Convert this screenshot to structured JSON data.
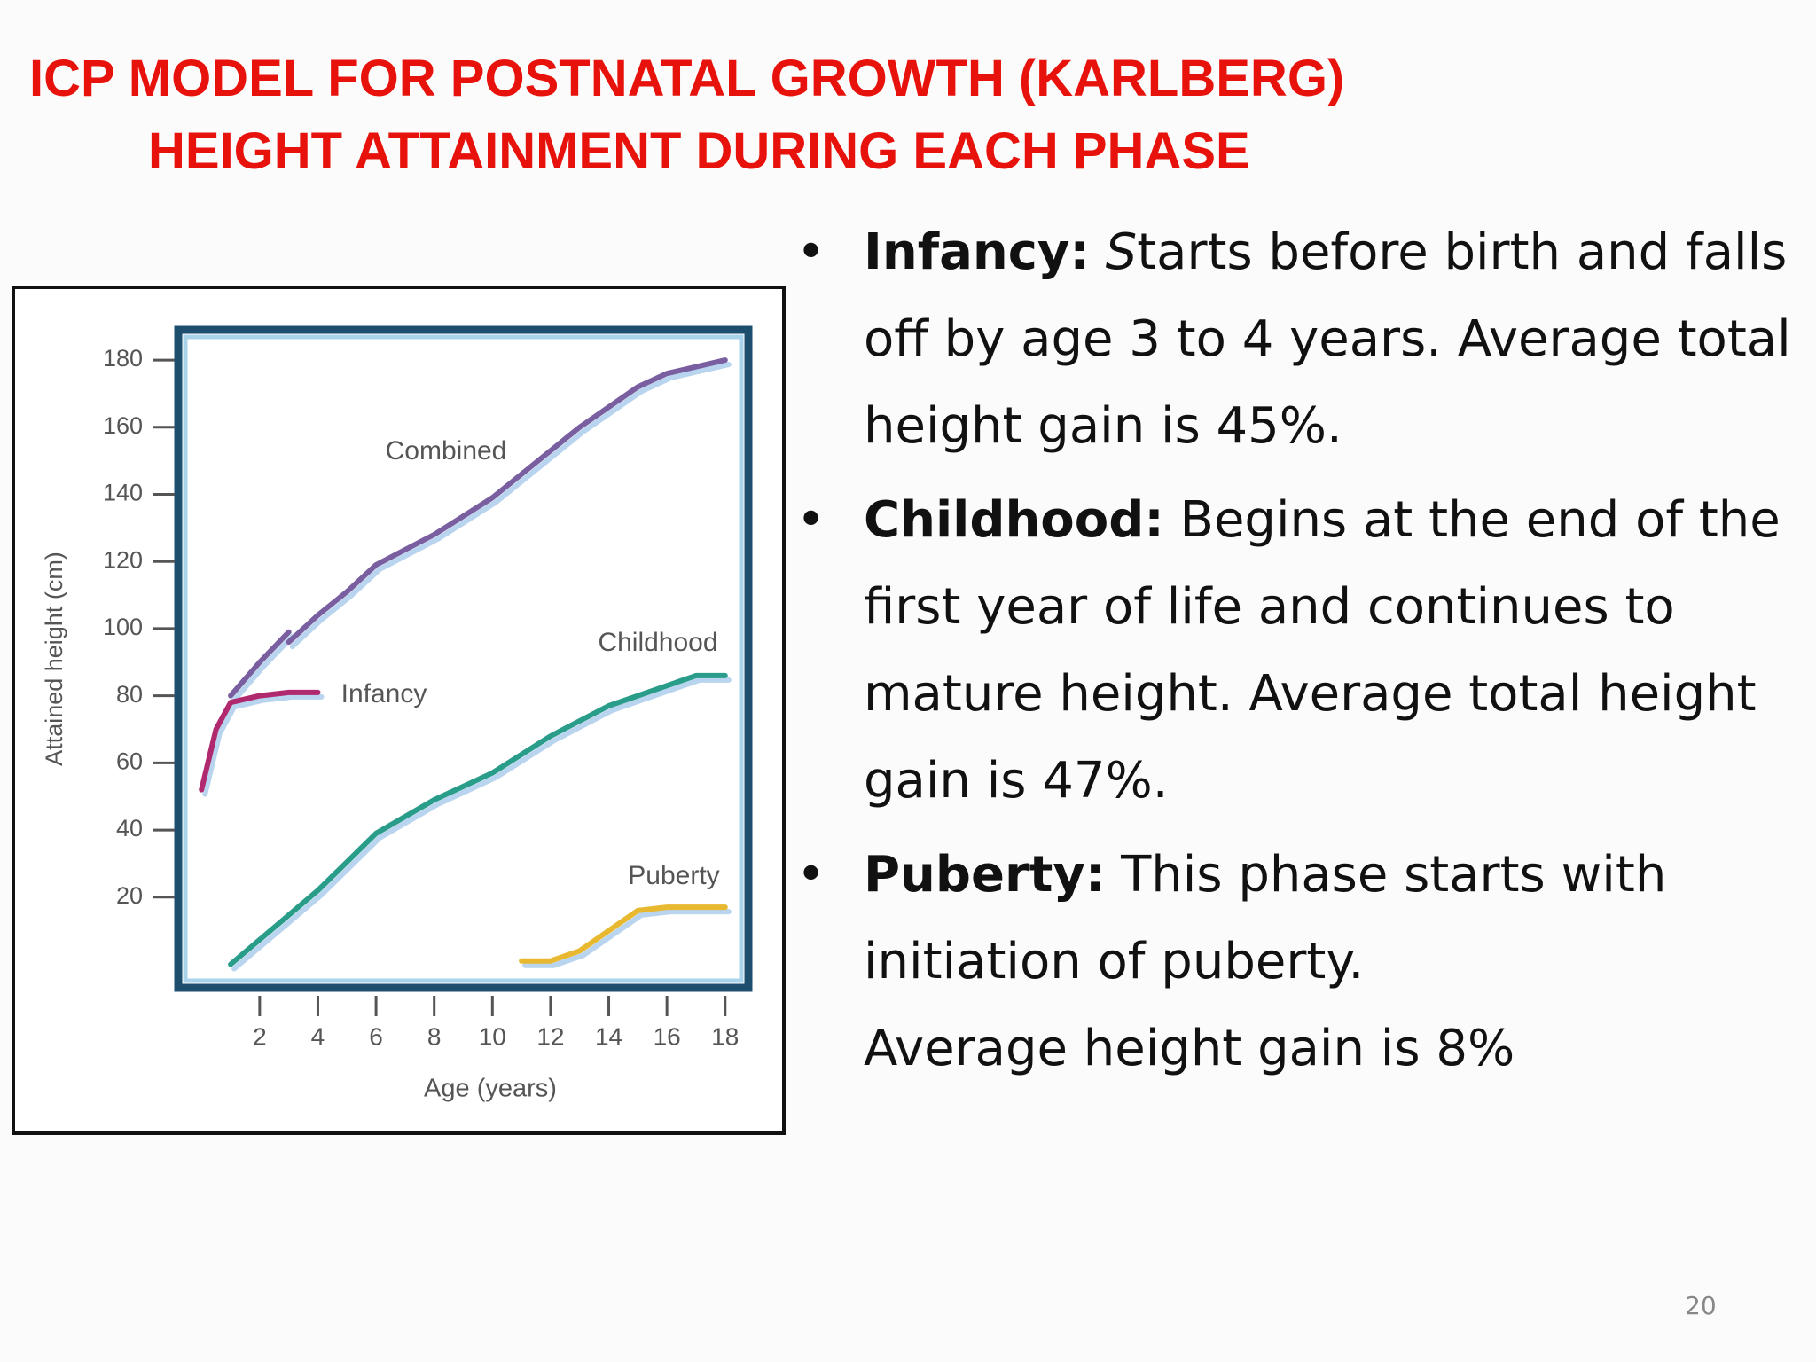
{
  "title": [
    "ICP MODEL FOR POSTNATAL GROWTH (KARLBERG)",
    "HEIGHT ATTAINMENT DURING  EACH PHASE"
  ],
  "chart_data": {
    "type": "line",
    "x_label": "Age (years)",
    "y_label": "Attained height (cm)",
    "xlim": [
      -0.8,
      18.8
    ],
    "ylim": [
      -7,
      189
    ],
    "xticks": [
      2,
      4,
      6,
      8,
      10,
      12,
      14,
      16,
      18
    ],
    "yticks": [
      20,
      40,
      60,
      80,
      100,
      120,
      140,
      160,
      180
    ],
    "series": [
      {
        "name": "Combined",
        "color": "#7a5fa0",
        "x": [
          1,
          2,
          3,
          3,
          3,
          4,
          5,
          6,
          8,
          10,
          12,
          13,
          14,
          15,
          16,
          18
        ],
        "values": [
          80,
          90,
          99,
          null,
          96,
          104,
          111,
          119,
          128,
          139,
          153,
          160,
          166,
          172,
          176,
          180
        ]
      },
      {
        "name": "Infancy",
        "color": "#b0286e",
        "x": [
          0,
          0.5,
          1,
          2,
          3,
          4
        ],
        "values": [
          52,
          70,
          78,
          80,
          81,
          81
        ]
      },
      {
        "name": "Childhood",
        "color": "#2a9d8a",
        "x": [
          1,
          4,
          6,
          8,
          10,
          12,
          14,
          16,
          17,
          18
        ],
        "values": [
          0,
          22,
          39,
          49,
          57,
          68,
          77,
          83,
          86,
          86
        ]
      },
      {
        "name": "Puberty",
        "color": "#e8b830",
        "x": [
          11,
          12,
          13,
          14,
          15,
          16,
          18
        ],
        "values": [
          1,
          1,
          4,
          10,
          16,
          17,
          17
        ]
      }
    ]
  },
  "bullets": [
    {
      "lead": "Infancy:",
      "initial": "S",
      "text": "tarts before birth and falls off by age 3 to 4 years. Average total height gain is 45%."
    },
    {
      "lead": "Childhood:",
      "text": "Begins at the end of the first year of life and continues to mature height. Average total height gain is 47%."
    },
    {
      "lead": "Puberty:",
      "text": "This phase starts with initiation of puberty.",
      "text2": "Average height gain is 8%"
    }
  ],
  "page_number": "20"
}
